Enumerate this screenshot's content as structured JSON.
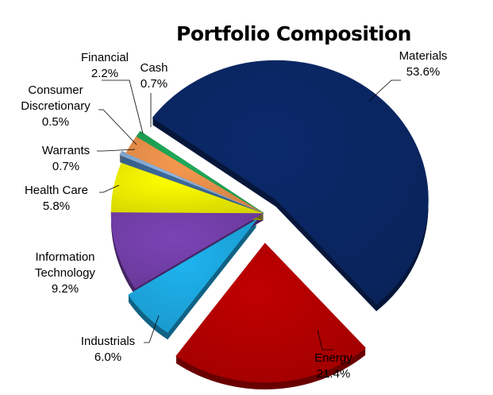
{
  "chart_data": {
    "type": "pie",
    "title": "Portfolio Composition",
    "slices": [
      {
        "label": "Materials",
        "label_lines": [
          "Materials"
        ],
        "value": 53.6,
        "value_label": "53.6%",
        "color": "#0b2a6b"
      },
      {
        "label": "Energy",
        "label_lines": [
          "Energy"
        ],
        "value": 21.4,
        "value_label": "21.4%",
        "color": "#c00000"
      },
      {
        "label": "Industrials",
        "label_lines": [
          "Industrials"
        ],
        "value": 6.0,
        "value_label": "6.0%",
        "color": "#1eb4f0"
      },
      {
        "label": "Information Technology",
        "label_lines": [
          "Information",
          "Technology"
        ],
        "value": 9.2,
        "value_label": "9.2%",
        "color": "#7b43b5"
      },
      {
        "label": "Health Care",
        "label_lines": [
          "Health Care"
        ],
        "value": 5.8,
        "value_label": "5.8%",
        "color": "#ffff00"
      },
      {
        "label": "Warrants",
        "label_lines": [
          "Warrants"
        ],
        "value": 0.7,
        "value_label": "0.7%",
        "color": "#3d6a9c"
      },
      {
        "label": "Consumer Discretionary",
        "label_lines": [
          "Consumer",
          "Discretionary"
        ],
        "value": 0.5,
        "value_label": "0.5%",
        "color": "#8fb4df"
      },
      {
        "label": "Financial",
        "label_lines": [
          "Financial"
        ],
        "value": 2.2,
        "value_label": "2.2%",
        "color": "#f7994f"
      },
      {
        "label": "Cash",
        "label_lines": [
          "Cash"
        ],
        "value": 0.7,
        "value_label": "0.7%",
        "color": "#1fad5a"
      }
    ]
  }
}
